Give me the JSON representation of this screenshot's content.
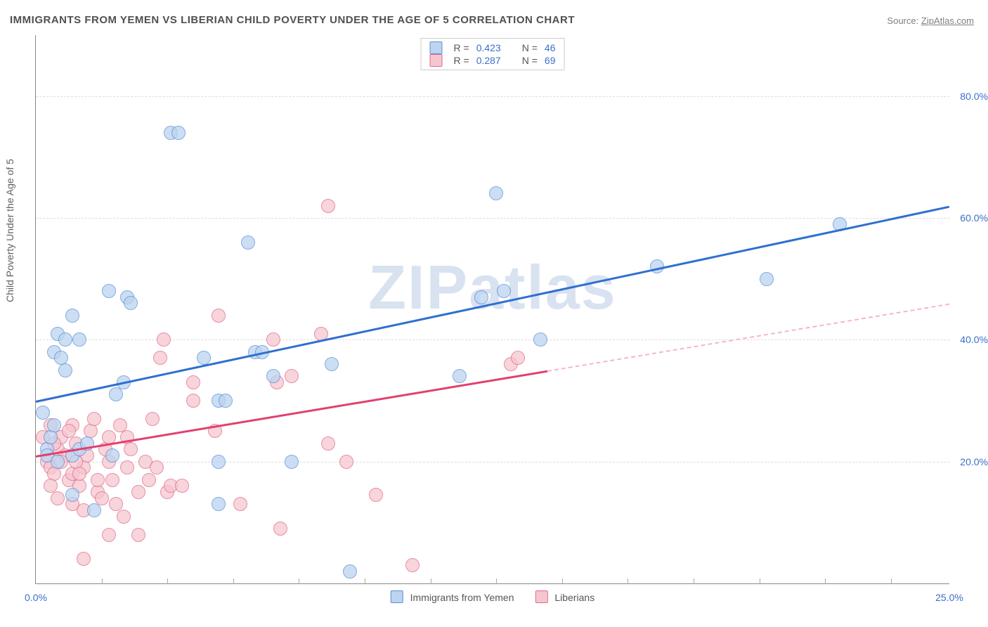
{
  "title": "IMMIGRANTS FROM YEMEN VS LIBERIAN CHILD POVERTY UNDER THE AGE OF 5 CORRELATION CHART",
  "source_label": "Source:",
  "source_name": "ZipAtlas.com",
  "ylabel": "Child Poverty Under the Age of 5",
  "watermark": "ZIPatlas",
  "chart": {
    "type": "scatter",
    "background_color": "#ffffff",
    "grid_color": "#dcdcdc",
    "axis_color": "#888888",
    "xlim": [
      0,
      25
    ],
    "ylim": [
      0,
      90
    ],
    "yticks": [
      20,
      40,
      60,
      80
    ],
    "ytick_labels": [
      "20.0%",
      "40.0%",
      "60.0%",
      "80.0%"
    ],
    "xticks_minor": [
      1.8,
      3.6,
      5.4,
      7.2,
      9.0,
      10.8,
      12.6,
      14.4,
      16.2,
      18.0,
      19.8,
      21.6,
      23.4
    ],
    "xtick_labels": [
      {
        "value": 0,
        "text": "0.0%"
      },
      {
        "value": 25,
        "text": "25.0%"
      }
    ],
    "ytick_color": "#3b6fc9",
    "point_radius": 9,
    "series": [
      {
        "name": "Immigrants from Yemen",
        "fill": "#bcd4f0",
        "stroke": "#5a8fd6",
        "stroke_width": 1.5,
        "fill_opacity": 0.75,
        "R": "0.423",
        "N": "46",
        "trend": {
          "x1": 0,
          "y1": 30,
          "x2": 25,
          "y2": 62,
          "solid_until_x": 25,
          "color": "#2f6fd0",
          "width": 3
        },
        "points": [
          [
            0.2,
            28
          ],
          [
            0.3,
            22
          ],
          [
            0.3,
            21
          ],
          [
            0.4,
            24
          ],
          [
            0.5,
            26
          ],
          [
            0.5,
            38
          ],
          [
            0.6,
            41
          ],
          [
            0.7,
            37
          ],
          [
            0.8,
            35
          ],
          [
            2.5,
            47
          ],
          [
            2.6,
            46
          ],
          [
            1.0,
            44
          ],
          [
            1.2,
            40
          ],
          [
            0.8,
            40
          ],
          [
            2.0,
            48
          ],
          [
            1.6,
            12
          ],
          [
            3.7,
            74
          ],
          [
            3.9,
            74
          ],
          [
            5.8,
            56
          ],
          [
            4.6,
            37
          ],
          [
            5.0,
            30
          ],
          [
            5.2,
            30
          ],
          [
            5.0,
            13
          ],
          [
            6.0,
            38
          ],
          [
            6.2,
            38
          ],
          [
            6.5,
            34
          ],
          [
            8.1,
            36
          ],
          [
            8.6,
            2
          ],
          [
            7.0,
            20
          ],
          [
            5.0,
            20
          ],
          [
            11.6,
            34
          ],
          [
            12.6,
            64
          ],
          [
            12.2,
            47
          ],
          [
            13.8,
            40
          ],
          [
            12.8,
            48
          ],
          [
            17.0,
            52
          ],
          [
            20.0,
            50
          ],
          [
            22.0,
            59
          ],
          [
            2.4,
            33
          ],
          [
            1.0,
            21
          ],
          [
            1.2,
            22
          ],
          [
            1.4,
            23
          ],
          [
            1.0,
            14.5
          ],
          [
            0.6,
            20
          ],
          [
            2.1,
            21
          ],
          [
            2.2,
            31
          ]
        ]
      },
      {
        "name": "Liberians",
        "fill": "#f6c6d0",
        "stroke": "#e06a8a",
        "stroke_width": 1.5,
        "fill_opacity": 0.75,
        "R": "0.287",
        "N": "69",
        "trend": {
          "x1": 0,
          "y1": 21,
          "x2": 25,
          "y2": 46,
          "solid_until_x": 14,
          "color": "#e23f6d",
          "width": 3,
          "dash_color": "#f4b7c6"
        },
        "points": [
          [
            0.3,
            20
          ],
          [
            0.4,
            19
          ],
          [
            0.5,
            18
          ],
          [
            0.6,
            22
          ],
          [
            0.7,
            24
          ],
          [
            0.8,
            21
          ],
          [
            0.9,
            17
          ],
          [
            1.0,
            18
          ],
          [
            1.1,
            23
          ],
          [
            1.2,
            16
          ],
          [
            1.3,
            19
          ],
          [
            1.4,
            21
          ],
          [
            1.5,
            25
          ],
          [
            1.6,
            27
          ],
          [
            1.7,
            15
          ],
          [
            1.8,
            14
          ],
          [
            1.9,
            22
          ],
          [
            2.0,
            20
          ],
          [
            2.1,
            17
          ],
          [
            2.2,
            13
          ],
          [
            2.3,
            26
          ],
          [
            2.4,
            11
          ],
          [
            2.5,
            24
          ],
          [
            2.6,
            22
          ],
          [
            2.8,
            15
          ],
          [
            3.0,
            20
          ],
          [
            3.1,
            17
          ],
          [
            3.2,
            27
          ],
          [
            3.3,
            19
          ],
          [
            3.4,
            37
          ],
          [
            3.5,
            40
          ],
          [
            3.6,
            15
          ],
          [
            3.7,
            16
          ],
          [
            2.0,
            8
          ],
          [
            2.8,
            8
          ],
          [
            1.3,
            4
          ],
          [
            5.0,
            44
          ],
          [
            4.3,
            33
          ],
          [
            4.3,
            30
          ],
          [
            4.9,
            25
          ],
          [
            5.6,
            13
          ],
          [
            6.5,
            40
          ],
          [
            6.6,
            33
          ],
          [
            6.7,
            9
          ],
          [
            7.8,
            41
          ],
          [
            7.0,
            34
          ],
          [
            8.0,
            62
          ],
          [
            8.0,
            23
          ],
          [
            8.5,
            20
          ],
          [
            9.3,
            14.5
          ],
          [
            10.3,
            3
          ],
          [
            13.0,
            36
          ],
          [
            13.2,
            37
          ],
          [
            1.0,
            26
          ],
          [
            0.2,
            24
          ],
          [
            0.4,
            26
          ],
          [
            0.5,
            23
          ],
          [
            0.7,
            20
          ],
          [
            0.9,
            25
          ],
          [
            1.1,
            20
          ],
          [
            1.2,
            18
          ],
          [
            1.0,
            13
          ],
          [
            1.3,
            12
          ],
          [
            0.4,
            16
          ],
          [
            0.6,
            14
          ],
          [
            1.7,
            17
          ],
          [
            2.0,
            24
          ],
          [
            2.5,
            19
          ],
          [
            4.0,
            16
          ]
        ]
      }
    ]
  },
  "r_legend": {
    "r_label": "R =",
    "n_label": "N ="
  }
}
